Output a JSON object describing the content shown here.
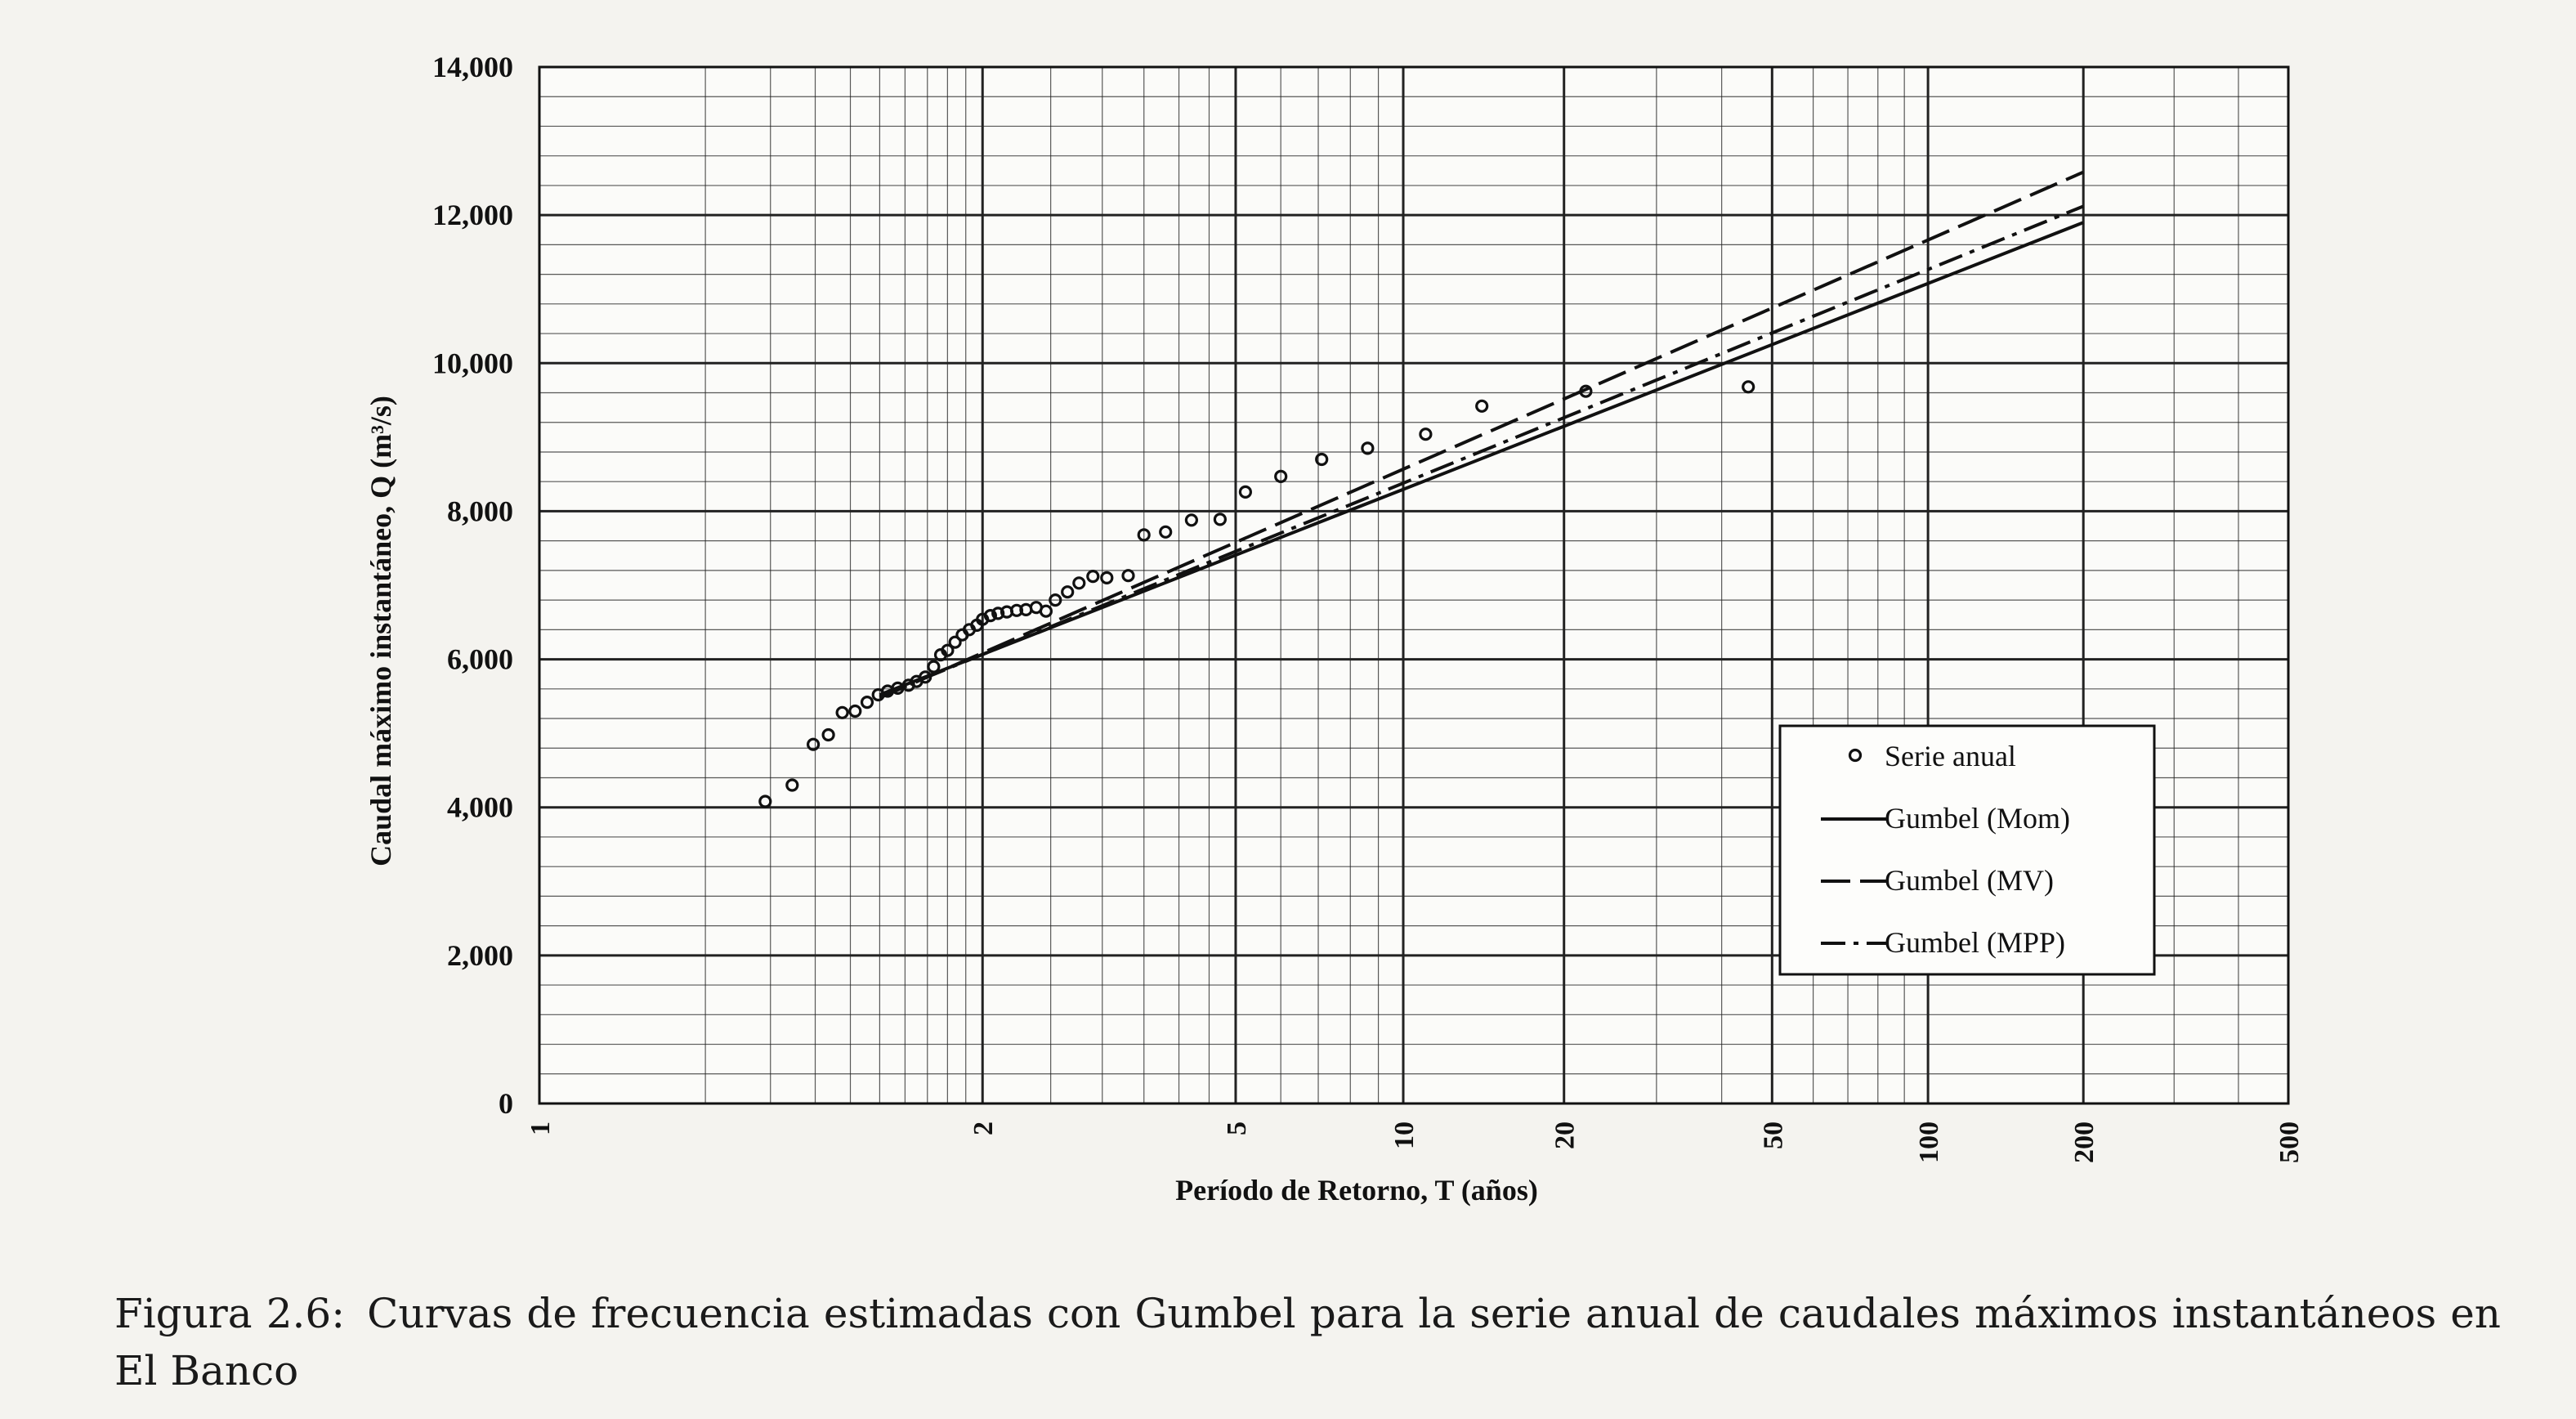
{
  "chart_data": {
    "type": "scatter",
    "xlabel": "Período de Retorno, T (años)",
    "ylabel": "Caudal máximo instantáneo, Q (m³/s)",
    "x_scale": "gumbel-reduced-variate",
    "xlim": [
      1,
      500
    ],
    "ylim": [
      0,
      14000
    ],
    "x_ticks": [
      1,
      2,
      5,
      10,
      20,
      50,
      100,
      200,
      500
    ],
    "x_tick_labels": [
      "1",
      "2",
      "5",
      "10",
      "20",
      "50",
      "100",
      "200",
      "500"
    ],
    "y_ticks": [
      0,
      2000,
      4000,
      6000,
      8000,
      10000,
      12000,
      14000
    ],
    "y_tick_labels": [
      "0",
      "2,000",
      "4,000",
      "6,000",
      "8,000",
      "10,000",
      "12,000",
      "14,000"
    ],
    "grid": true,
    "legend_position": "lower-right",
    "series": [
      {
        "name": "Serie anual",
        "kind": "points",
        "points": [
          [
            1.19,
            4080
          ],
          [
            1.245,
            4300
          ],
          [
            1.295,
            4850
          ],
          [
            1.335,
            4980
          ],
          [
            1.375,
            5280
          ],
          [
            1.415,
            5300
          ],
          [
            1.455,
            5420
          ],
          [
            1.495,
            5520
          ],
          [
            1.53,
            5570
          ],
          [
            1.57,
            5610
          ],
          [
            1.615,
            5650
          ],
          [
            1.65,
            5700
          ],
          [
            1.69,
            5760
          ],
          [
            1.73,
            5900
          ],
          [
            1.765,
            6060
          ],
          [
            1.8,
            6120
          ],
          [
            1.84,
            6230
          ],
          [
            1.88,
            6330
          ],
          [
            1.92,
            6400
          ],
          [
            1.965,
            6460
          ],
          [
            2.0,
            6540
          ],
          [
            2.05,
            6590
          ],
          [
            2.1,
            6620
          ],
          [
            2.16,
            6640
          ],
          [
            2.23,
            6660
          ],
          [
            2.3,
            6670
          ],
          [
            2.38,
            6700
          ],
          [
            2.46,
            6650
          ],
          [
            2.54,
            6800
          ],
          [
            2.65,
            6910
          ],
          [
            2.76,
            7030
          ],
          [
            2.9,
            7120
          ],
          [
            3.05,
            7100
          ],
          [
            3.3,
            7130
          ],
          [
            3.5,
            7680
          ],
          [
            3.8,
            7720
          ],
          [
            4.2,
            7880
          ],
          [
            4.7,
            7890
          ],
          [
            5.2,
            8260
          ],
          [
            6.0,
            8470
          ],
          [
            7.1,
            8700
          ],
          [
            8.6,
            8850
          ],
          [
            11.0,
            9040
          ],
          [
            14.0,
            9420
          ],
          [
            22.0,
            9620
          ],
          [
            45.0,
            9680
          ]
        ]
      },
      {
        "name": "Gumbel (Mom)",
        "kind": "line",
        "dash": "",
        "x": [
          1.5,
          200
        ],
        "y": [
          5520,
          11900
        ]
      },
      {
        "name": "Gumbel (MV)",
        "kind": "line",
        "dash": "36 12",
        "x": [
          1.5,
          200
        ],
        "y": [
          5480,
          12580
        ]
      },
      {
        "name": "Gumbel (MPP)",
        "kind": "line",
        "dash": "30 10 6 10",
        "x": [
          1.5,
          200
        ],
        "y": [
          5500,
          12120
        ]
      }
    ]
  },
  "caption": {
    "label": "Figura 2.6:",
    "text": "Curvas de frecuencia estimadas con Gumbel para la serie anual de caudales máximos instantáneos en El Banco"
  }
}
